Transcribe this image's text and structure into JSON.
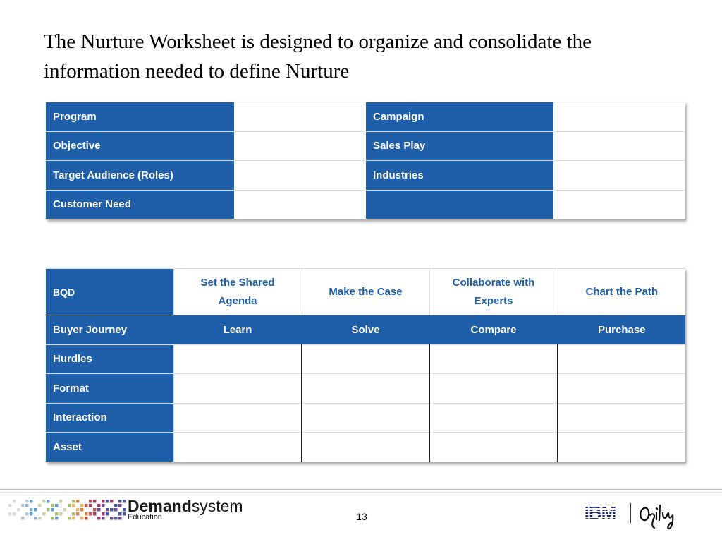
{
  "slide": {
    "title": "The Nurture Worksheet is designed to organize and consolidate the information needed to define Nurture",
    "page_number": "13"
  },
  "info_table": {
    "rows": [
      {
        "left_label": "Program",
        "right_label": "Campaign"
      },
      {
        "left_label": "Objective",
        "right_label": "Sales Play"
      },
      {
        "left_label": "Target Audience (Roles)",
        "right_label": "Industries"
      },
      {
        "left_label": "Customer Need",
        "right_label": ""
      }
    ]
  },
  "bqd_table": {
    "header_label": "BQD",
    "stages": [
      "Set the Shared Agenda",
      "Make the Case",
      "Collaborate with Experts",
      "Chart the Path"
    ],
    "journey_label": "Buyer Journey",
    "journey": [
      "Learn",
      "Solve",
      "Compare",
      "Purchase"
    ],
    "rows": [
      "Hurdles",
      "Format",
      "Interaction",
      "Asset"
    ]
  },
  "footer": {
    "brand_bold": "Demand",
    "brand_light": "system",
    "brand_sub": "Education",
    "partner_1": "IBM",
    "partner_2": "Ogilvy"
  },
  "colors": {
    "header_blue": "#1f5fa9",
    "stage_text": "#1f5fa9"
  }
}
